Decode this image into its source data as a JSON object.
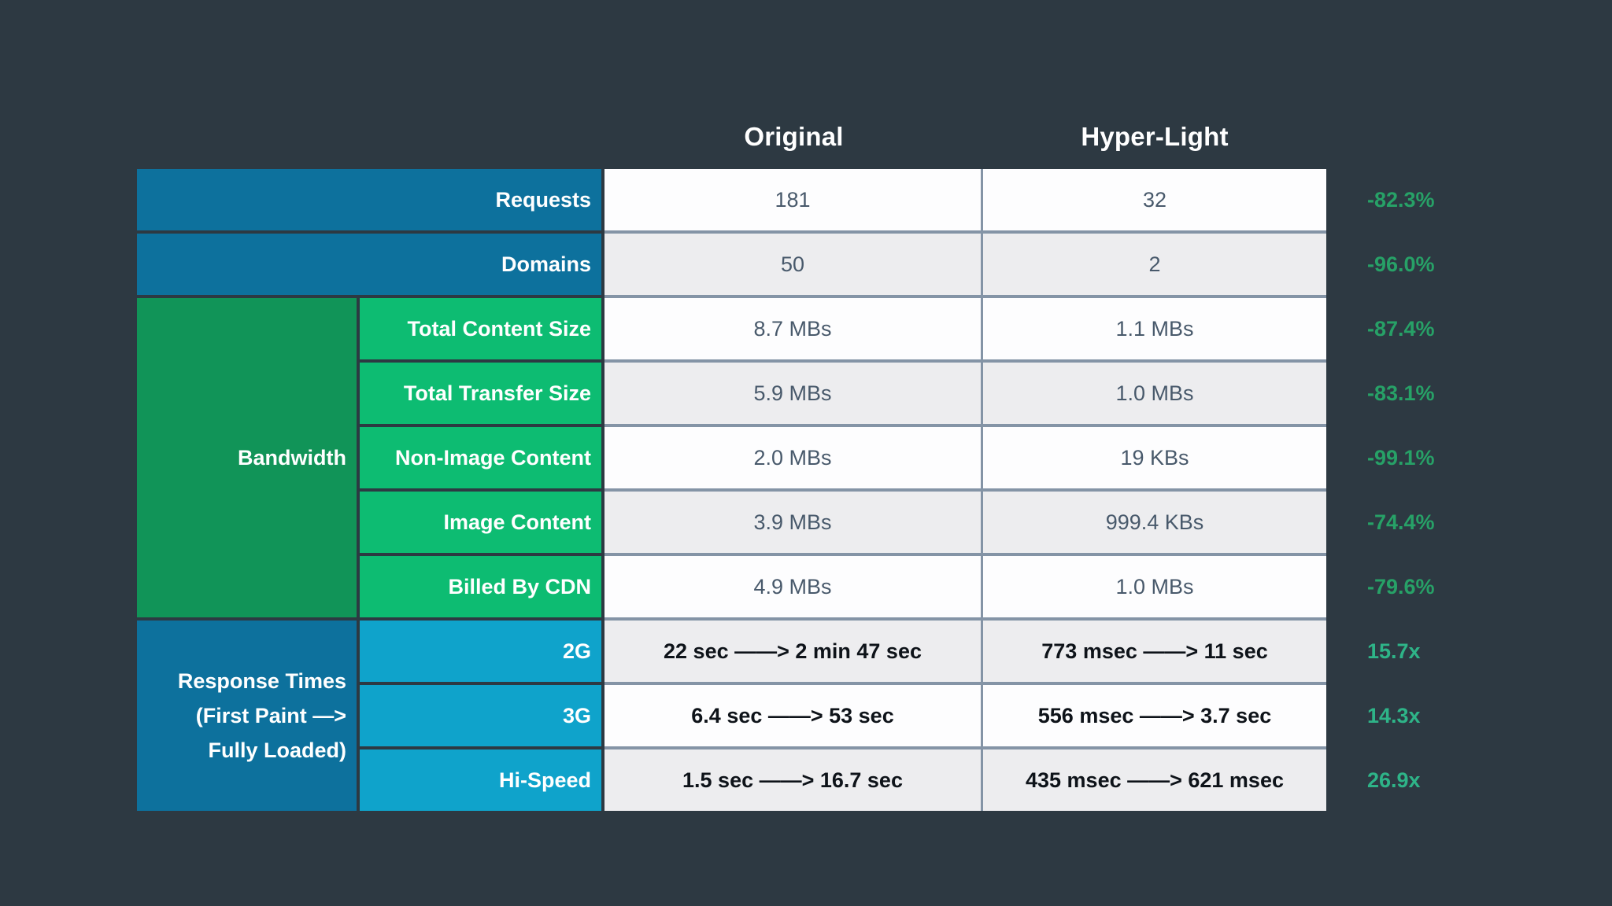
{
  "columns": {
    "original": "Original",
    "hyper_light": "Hyper-Light"
  },
  "response_group_lines": {
    "line1": "Response Times",
    "line2": "(First Paint —>",
    "line3": "Fully Loaded)"
  },
  "chart_data": {
    "type": "table",
    "column_headers": [
      "Original",
      "Hyper-Light"
    ],
    "rows": [
      {
        "group": "",
        "metric": "Requests",
        "original": "181",
        "hyper_light": "32",
        "change": "-82.3%"
      },
      {
        "group": "",
        "metric": "Domains",
        "original": "50",
        "hyper_light": "2",
        "change": "-96.0%"
      },
      {
        "group": "Bandwidth",
        "metric": "Total Content Size",
        "original": "8.7 MBs",
        "hyper_light": "1.1 MBs",
        "change": "-87.4%"
      },
      {
        "group": "Bandwidth",
        "metric": "Total Transfer Size",
        "original": "5.9 MBs",
        "hyper_light": "1.0 MBs",
        "change": "-83.1%"
      },
      {
        "group": "Bandwidth",
        "metric": "Non-Image Content",
        "original": "2.0 MBs",
        "hyper_light": "19 KBs",
        "change": "-99.1%"
      },
      {
        "group": "Bandwidth",
        "metric": "Image Content",
        "original": "3.9 MBs",
        "hyper_light": "999.4 KBs",
        "change": "-74.4%"
      },
      {
        "group": "Bandwidth",
        "metric": "Billed By CDN",
        "original": "4.9 MBs",
        "hyper_light": "1.0 MBs",
        "change": "-79.6%"
      },
      {
        "group": "Response Times (First Paint —> Fully Loaded)",
        "metric": "2G",
        "original": "22 sec ——> 2 min 47 sec",
        "hyper_light": "773 msec ——> 11 sec",
        "change": "15.7x"
      },
      {
        "group": "Response Times (First Paint —> Fully Loaded)",
        "metric": "3G",
        "original": "6.4 sec ——> 53 sec",
        "hyper_light": "556 msec ——> 3.7 sec",
        "change": "14.3x"
      },
      {
        "group": "Response Times (First Paint —> Fully Loaded)",
        "metric": "Hi-Speed",
        "original": "1.5 sec ——> 16.7 sec",
        "hyper_light": "435 msec ——> 621 msec",
        "change": "26.9x"
      }
    ]
  },
  "colors": {
    "background": "#2d3942",
    "blue_row": "#0d719d",
    "cyan_row": "#0fa3cb",
    "green_group": "#119458",
    "green_row": "#0dbc72",
    "percent_green": "#27a167",
    "multiplier_green": "#2eb488",
    "row_white": "#fdfdfe",
    "row_alt": "#ededef",
    "data_text": "#48596b",
    "time_text": "#0e1319",
    "divider": "#8494a6",
    "label_text": "#ffffff"
  }
}
